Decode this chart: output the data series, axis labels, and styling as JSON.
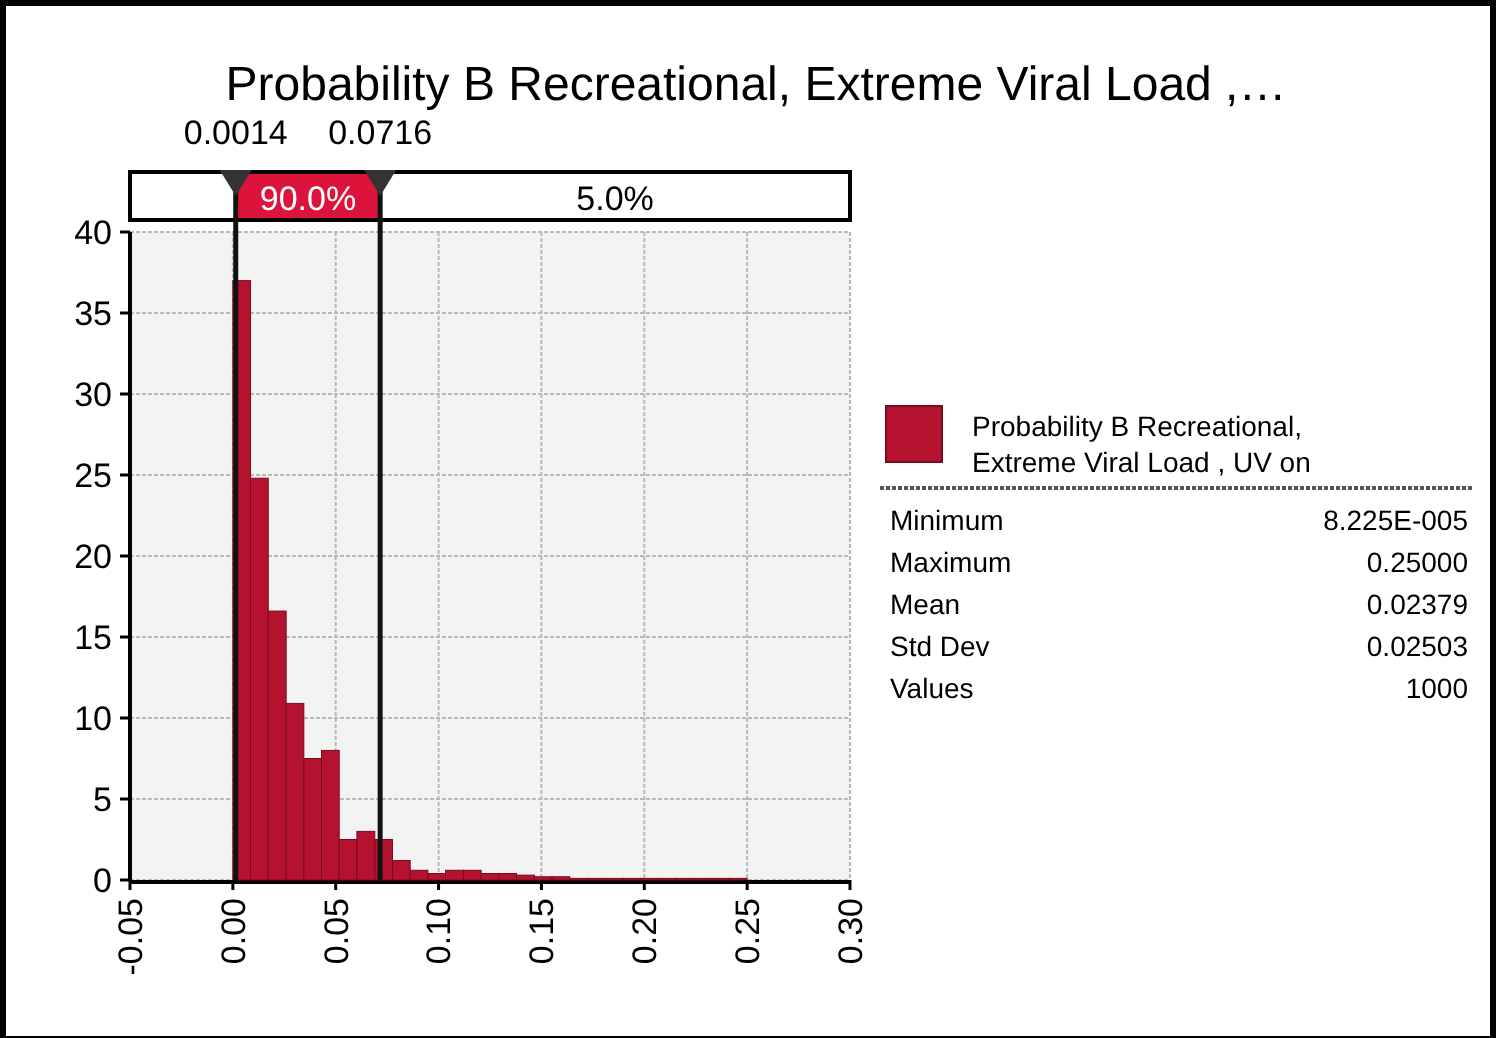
{
  "chart_data": {
    "type": "histogram",
    "title": "Probability B Recreational, Extreme Viral Load ,…",
    "bins": [
      0,
      0.0086,
      0.0172,
      0.0259,
      0.0345,
      0.0431,
      0.0517,
      0.0603,
      0.069,
      0.0776,
      0.0862,
      0.0948,
      0.1034,
      0.1121,
      0.1207,
      0.1293,
      0.1379,
      0.1466,
      0.1552,
      0.1638,
      0.1724,
      0.181,
      0.1897,
      0.1983,
      0.2069,
      0.2155,
      0.2241,
      0.2328,
      0.2414,
      0.25
    ],
    "series": [
      {
        "name": "Probability B Recreational, Extreme Viral Load , UV on",
        "color": "#b5122f",
        "values": [
          37,
          24.8,
          16.6,
          10.9,
          7.5,
          8.0,
          2.5,
          3.0,
          2.5,
          1.2,
          0.6,
          0.4,
          0.6,
          0.6,
          0.4,
          0.4,
          0.3,
          0.2,
          0.2,
          0.1,
          0.1,
          0.1,
          0.1,
          0.1,
          0.1,
          0.1,
          0.1,
          0.1,
          0.1
        ]
      }
    ],
    "xlim": [
      -0.05,
      0.3
    ],
    "xticks": [
      {
        "value": -0.05,
        "label": "-0.05"
      },
      {
        "value": 0,
        "label": "0.00"
      },
      {
        "value": 0.05,
        "label": "0.05"
      },
      {
        "value": 0.1,
        "label": "0.10"
      },
      {
        "value": 0.15,
        "label": "0.15"
      },
      {
        "value": 0.2,
        "label": "0.20"
      },
      {
        "value": 0.25,
        "label": "0.25"
      },
      {
        "value": 0.3,
        "label": "0.30"
      }
    ],
    "ylim": [
      0,
      40
    ],
    "yticks": [
      0,
      5,
      10,
      15,
      20,
      25,
      30,
      35,
      40
    ],
    "grid": true,
    "legend": "right",
    "ref_lines": [
      {
        "axis": "x",
        "value": 0.0014,
        "label": "0.0014"
      },
      {
        "axis": "x",
        "value": 0.0716,
        "label": "0.0716"
      }
    ],
    "annotations": [
      "90.0%",
      "5.0%",
      "Minimum",
      "8.225E-005",
      "Maximum",
      "0.25000",
      "Mean",
      "0.02379",
      "Std Dev",
      "0.02503",
      "Values",
      "1000"
    ]
  }
}
